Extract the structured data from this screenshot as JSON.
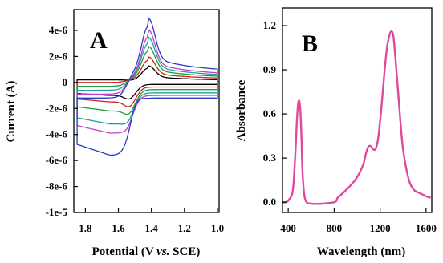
{
  "chart_data": [
    {
      "type": "line",
      "panel_label": "A",
      "xlabel": "Potential (V vs. SCE)",
      "xlabel_parts": [
        "Potential (V ",
        "vs.",
        " SCE)"
      ],
      "ylabel": "Current (A)",
      "xlim": [
        1.87,
        0.99
      ],
      "ylim": [
        -1e-05,
        5.6e-06
      ],
      "x_ticks": [
        1.8,
        1.6,
        1.4,
        1.2,
        1.0
      ],
      "x_tick_labels": [
        "1.8",
        "1.6",
        "1.4",
        "1.2",
        "1.0"
      ],
      "y_ticks": [
        4e-06,
        2e-06,
        0,
        -2e-06,
        -4e-06,
        -6e-06,
        -8e-06,
        -1e-05
      ],
      "y_tick_labels": [
        "4e-6",
        "2e-6",
        "0",
        "-2e-6",
        "-4e-6",
        "-6e-6",
        "-8e-6",
        "-1e-5"
      ],
      "grid": false,
      "series": [
        {
          "color": "#000000",
          "peak_anodic": 1.1e-06,
          "peak_cathodic": -1.6e-06,
          "base_top": 1.5e-07,
          "base_bottom": -1.5e-07,
          "start_top": 2e-07,
          "start_bottom": -1e-06
        },
        {
          "color": "#d42020",
          "peak_anodic": 1.7e-06,
          "peak_cathodic": -2.3e-06,
          "base_top": 2.5e-07,
          "base_bottom": -3.5e-07,
          "start_top": 0.0,
          "start_bottom": -1.5e-06
        },
        {
          "color": "#1f9a3a",
          "peak_anodic": 2.4e-06,
          "peak_cathodic": -3e-06,
          "base_top": 3.5e-07,
          "base_bottom": -5.5e-07,
          "start_top": -3e-07,
          "start_bottom": -2.2e-06
        },
        {
          "color": "#1aa0a8",
          "peak_anodic": 3e-06,
          "peak_cathodic": -3.7e-06,
          "base_top": 4.5e-07,
          "base_bottom": -8e-07,
          "start_top": -6e-07,
          "start_bottom": -3.2e-06
        },
        {
          "color": "#c040c0",
          "peak_anodic": 3.5e-06,
          "peak_cathodic": -4.2e-06,
          "base_top": 5.5e-07,
          "base_bottom": -1e-06,
          "start_top": -9e-07,
          "start_bottom": -3.9e-06
        },
        {
          "color": "#2a3dbf",
          "peak_anodic": 4.3e-06,
          "peak_cathodic": -5e-06,
          "base_top": 8e-07,
          "base_bottom": -1.2e-06,
          "start_top": -1.2e-06,
          "start_bottom": -5.6e-06
        }
      ]
    },
    {
      "type": "line",
      "panel_label": "B",
      "xlabel": "Wavelength (nm)",
      "ylabel": "Absorbance",
      "xlim": [
        350,
        1650
      ],
      "ylim": [
        -0.07,
        1.32
      ],
      "x_ticks": [
        400,
        800,
        1200,
        1600
      ],
      "x_tick_labels": [
        "400",
        "800",
        "1200",
        "1600"
      ],
      "y_ticks": [
        0.0,
        0.3,
        0.6,
        0.9,
        1.2
      ],
      "y_tick_labels": [
        "0.0",
        "0.3",
        "0.6",
        "0.9",
        "1.2"
      ],
      "grid": false,
      "color": "#e04a9c",
      "x": [
        355,
        380,
        410,
        440,
        460,
        475,
        485,
        495,
        505,
        515,
        525,
        540,
        560,
        600,
        700,
        800,
        820,
        830,
        860,
        900,
        950,
        1000,
        1050,
        1080,
        1100,
        1120,
        1140,
        1160,
        1180,
        1200,
        1220,
        1240,
        1260,
        1280,
        1295,
        1310,
        1320,
        1340,
        1360,
        1380,
        1400,
        1430,
        1460,
        1500,
        1550,
        1600,
        1640
      ],
      "y": [
        0.0,
        0.0,
        0.02,
        0.08,
        0.3,
        0.55,
        0.66,
        0.69,
        0.63,
        0.45,
        0.2,
        0.05,
        0.0,
        -0.01,
        -0.01,
        0.0,
        0.01,
        0.03,
        0.05,
        0.08,
        0.12,
        0.17,
        0.25,
        0.34,
        0.38,
        0.38,
        0.36,
        0.36,
        0.42,
        0.55,
        0.72,
        0.9,
        1.05,
        1.13,
        1.16,
        1.15,
        1.1,
        0.92,
        0.72,
        0.52,
        0.36,
        0.22,
        0.13,
        0.08,
        0.06,
        0.04,
        0.03
      ]
    }
  ]
}
